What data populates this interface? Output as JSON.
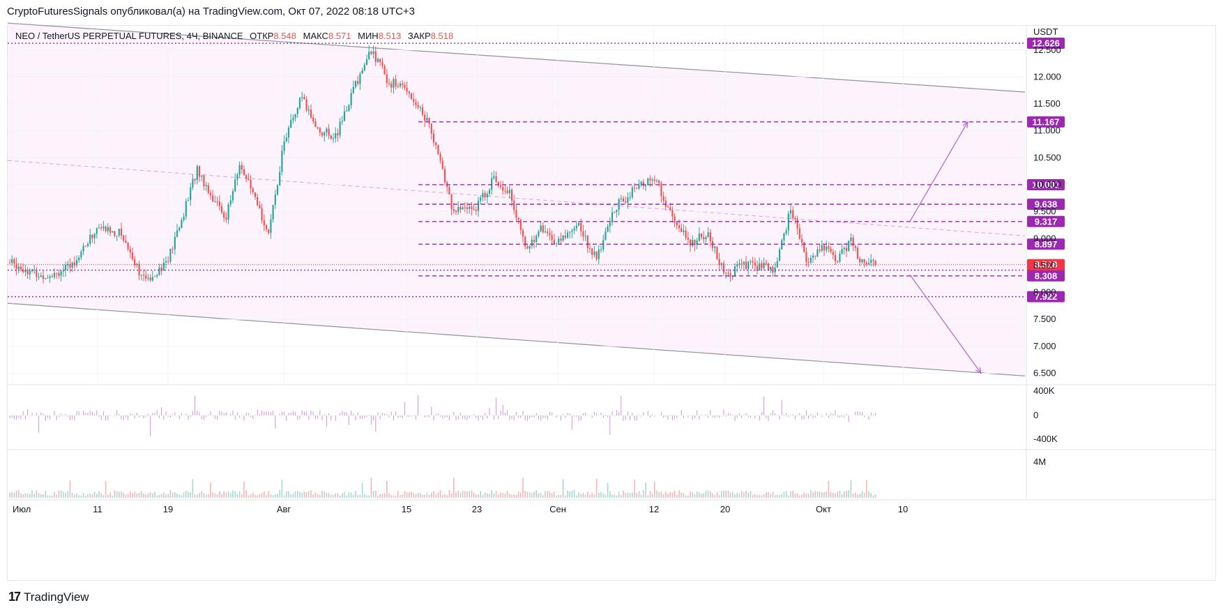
{
  "attribution": "CryptoFuturesSignals опубликовал(а) на TradingView.com, Окт 07, 2022 08:18 UTC+3",
  "legend": {
    "symbol": "NEO / TetherUS PERPETUAL FUTURES, 4Ч, BINANCE",
    "open_label": "ОТКР",
    "open": "8.548",
    "high_label": "МАКС",
    "high": "8.571",
    "low_label": "МИН",
    "low": "8.513",
    "close_label": "ЗАКР",
    "close": "8.518"
  },
  "footer": {
    "brand": "TradingView"
  },
  "colors": {
    "up": "#26a69a",
    "down": "#ef5350",
    "level": "#9c27b0",
    "channel_fill": "#fdf3fd",
    "last_price": "#f23645",
    "osc": "#ce93d8"
  },
  "chart_data": {
    "type": "candlestick",
    "symbol": "NEO / TetherUS PERPETUAL FUTURES",
    "timeframe": "4Ч",
    "exchange": "BINANCE",
    "currency": "USDT",
    "ylim": [
      6.3,
      12.95
    ],
    "y_ticks": [
      "6.500",
      "7.000",
      "7.500",
      "8.000",
      "8.500",
      "9.000",
      "9.500",
      "10.000",
      "10.500",
      "11.000",
      "11.500",
      "12.000",
      "12.500"
    ],
    "x_ticks": [
      "Июл",
      "11",
      "19",
      "Авг",
      "15",
      "23",
      "Сен",
      "12",
      "20",
      "Окт",
      "10"
    ],
    "last_price": 8.518,
    "last_price_label": "8.518",
    "price_path": [
      [
        "Июл",
        8.55
      ],
      [
        "Июл",
        8.3
      ],
      [
        "Июл",
        8.45
      ],
      [
        "11",
        9.2
      ],
      [
        "11",
        9.1
      ],
      [
        "11",
        8.2
      ],
      [
        "19",
        8.6
      ],
      [
        "19",
        9.4
      ],
      [
        "19",
        10.3
      ],
      [
        "19",
        9.8
      ],
      [
        "19",
        9.4
      ],
      [
        "19",
        10.4
      ],
      [
        "19",
        9.7
      ],
      [
        "19",
        9.1
      ],
      [
        "Авг",
        10.8
      ],
      [
        "Авг",
        11.6
      ],
      [
        "Авг",
        11.0
      ],
      [
        "Авг",
        10.9
      ],
      [
        "Авг",
        11.8
      ],
      [
        "Авг",
        12.5
      ],
      [
        "Авг",
        11.9
      ],
      [
        "15",
        11.8
      ],
      [
        "15",
        11.1
      ],
      [
        "15",
        9.5
      ],
      [
        "23",
        9.6
      ],
      [
        "23",
        10.1
      ],
      [
        "23",
        9.9
      ],
      [
        "23",
        8.8
      ],
      [
        "23",
        9.2
      ],
      [
        "Сен",
        8.9
      ],
      [
        "Сен",
        9.3
      ],
      [
        "Сен",
        8.6
      ],
      [
        "Сен",
        9.6
      ],
      [
        "Сен",
        9.9
      ],
      [
        "12",
        10.15
      ],
      [
        "12",
        9.4
      ],
      [
        "12",
        8.9
      ],
      [
        "12",
        9.1
      ],
      [
        "20",
        8.3
      ],
      [
        "20",
        8.5
      ],
      [
        "20",
        8.5
      ],
      [
        "20",
        8.4
      ],
      [
        "20",
        9.55
      ],
      [
        "20",
        8.6
      ],
      [
        "Окт",
        8.85
      ],
      [
        "Окт",
        8.6
      ],
      [
        "Окт",
        8.95
      ],
      [
        "Окт",
        8.52
      ]
    ],
    "levels": [
      {
        "value": 12.626,
        "label": "12.626",
        "style": "dotted"
      },
      {
        "value": 11.167,
        "label": "11.167",
        "style": "dashed"
      },
      {
        "value": 10.001,
        "label": "10.001",
        "style": "dashed"
      },
      {
        "value": 9.638,
        "label": "9.638",
        "style": "dashed"
      },
      {
        "value": 9.317,
        "label": "9.317",
        "style": "dashed"
      },
      {
        "value": 8.897,
        "label": "8.897",
        "style": "dashed"
      },
      {
        "value": 8.414,
        "label": "8.414",
        "style": "dotted"
      },
      {
        "value": 8.308,
        "label": "8.308",
        "style": "dashed"
      },
      {
        "value": 7.922,
        "label": "7.922",
        "style": "dotted"
      }
    ],
    "channel": {
      "upper": [
        [
          "Июл",
          13.0
        ],
        [
          "10",
          11.72
        ]
      ],
      "lower": [
        [
          "Июл",
          7.8
        ],
        [
          "10",
          6.45
        ]
      ],
      "mid": [
        [
          "Июл",
          10.45
        ],
        [
          "10",
          9.05
        ]
      ]
    },
    "projections": [
      {
        "from": [
          [
            "Окт",
            9.32
          ]
        ],
        "to": 11.167
      },
      {
        "from": [
          [
            "Окт",
            8.33
          ]
        ],
        "to": 6.5
      }
    ],
    "oscillator": {
      "ticks": [
        "400K",
        "0",
        "-400K"
      ]
    },
    "volume": {
      "ticks": [
        "4M"
      ]
    }
  }
}
